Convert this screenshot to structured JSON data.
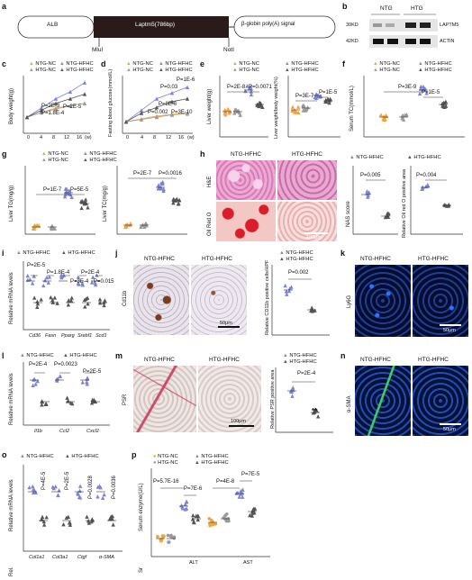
{
  "panels": {
    "a": "a",
    "b": "b",
    "c": "c",
    "d": "d",
    "e": "e",
    "f": "f",
    "g": "g",
    "h": "h",
    "i": "i",
    "j": "j",
    "k": "k",
    "l": "l",
    "m": "m",
    "n": "n",
    "o": "o",
    "p": "p"
  },
  "construct": {
    "alb": "ALB",
    "laptm5": "Laptm5(786bp)",
    "polyA": "β-globin poly(A) signal",
    "mlul": "MluI",
    "notl": "NotI"
  },
  "blot": {
    "ntg": "NTG",
    "htg": "HTG",
    "kd30": "30KD",
    "kd42": "42KD",
    "laptm5": "LAPTM5",
    "actin": "ACTIN"
  },
  "legend4": {
    "ntg_nc": "NTG-NC",
    "htg_nc": "HTG-NC",
    "ntg_hfhc": "NTG-HFHC",
    "htg_hfhc": "HTG-HFHC"
  },
  "legend2": {
    "ntg_hfhc": "NTG-HFHC",
    "htg_hfhc": "HTG-HFHC"
  },
  "colors": {
    "ntg_nc": "#f4a23a",
    "htg_nc": "#9a9a9a",
    "ntg_hfhc": "#7b83d6",
    "htg_hfhc": "#555555"
  },
  "c": {
    "ylabel": "Body weight(g)",
    "xticks": [
      "0",
      "4",
      "8",
      "12",
      "16"
    ],
    "xunit": "(w)",
    "p1": "P=2E-3",
    "p2": "P=1.8E-4",
    "p3": "P=2E-5",
    "chart_data": {
      "type": "line",
      "x": [
        0,
        4,
        8,
        12,
        16
      ],
      "series": [
        {
          "name": "NTG-NC",
          "values": [
            22,
            24,
            26,
            27,
            28
          ]
        },
        {
          "name": "HTG-NC",
          "values": [
            22,
            24,
            25.5,
            27,
            28
          ]
        },
        {
          "name": "NTG-HFHC",
          "values": [
            22,
            26,
            30,
            33,
            37
          ]
        },
        {
          "name": "HTG-HFHC",
          "values": [
            22,
            25,
            28,
            30,
            32
          ]
        }
      ]
    }
  },
  "d": {
    "ylabel": "Fasting blood glucose(mmol/L)",
    "xticks": [
      "0",
      "4",
      "8",
      "12",
      "16"
    ],
    "xunit": "(w)",
    "p1": "P=0.03",
    "p2": "P=1E-6",
    "p3": "P=0.002",
    "p4": "P=8E-6",
    "p5": "P=3E-10",
    "chart_data": {
      "type": "line",
      "x": [
        0,
        4,
        8,
        12,
        16
      ],
      "series": [
        {
          "name": "NTG-NC",
          "values": [
            5,
            5.5,
            6,
            6.3,
            6.5
          ]
        },
        {
          "name": "HTG-NC",
          "values": [
            5,
            5.4,
            5.8,
            6.2,
            6.4
          ]
        },
        {
          "name": "NTG-HFHC",
          "values": [
            5,
            7,
            9,
            10,
            11
          ]
        },
        {
          "name": "HTG-HFHC",
          "values": [
            5,
            6.5,
            7.5,
            8.5,
            9
          ]
        }
      ]
    }
  },
  "e": {
    "ylabel1": "Liver weight(g)",
    "ylabel2": "Liver weight/body weight(%)",
    "p1": "P=2E-8",
    "p2": "P=0.0071",
    "p3": "P=3E-7",
    "p4": "P=1E-5"
  },
  "f": {
    "ylabel": "Serum TC(mmol/L)",
    "p1": "P=3E-9",
    "p2": "P=1E-5"
  },
  "g": {
    "ylabel1": "Liver TG(mg/g)",
    "ylabel2": "Liver TC(mg/g)",
    "p1": "P=1E-7",
    "p2": "P=5E-5",
    "p3": "P=2E-7",
    "p4": "P=0.0016"
  },
  "h": {
    "col1": "NTG-HFHC",
    "col2": "HTG-HFHC",
    "row1": "H&E",
    "row2": "Oil Red O",
    "scale": "100μm",
    "ylabel1": "NAS score",
    "ylabel2": "Relative Oil red O positive area",
    "p1": "P=0.005",
    "p2": "P=0.004"
  },
  "i": {
    "ylabel": "Relative mRNA levels",
    "genes": [
      "Cd36",
      "Fasn",
      "Pparg",
      "Srebf1",
      "Scd1"
    ],
    "pvals": [
      "P=2E-5",
      "P=1.8E-4",
      "P=3E-4",
      "P=2E-4",
      "P=0.015"
    ]
  },
  "j": {
    "col1": "NTG-HFHC",
    "col2": "HTG-HFHC",
    "row": "Cd11b",
    "scale": "50μm",
    "ylabel": "Relative CD11b positive cells/HPF",
    "p": "P=0.002"
  },
  "k": {
    "col1": "NTG-HFHC",
    "col2": "HTG-HFHC",
    "row": "Ly6G",
    "scale": "50μm"
  },
  "l": {
    "ylabel": "Relative mRNA levels",
    "genes": [
      "Il1b",
      "Ccl2",
      "Cxcl2"
    ],
    "pvals": [
      "P=2E-4",
      "P=0.0023",
      "P=2E-5"
    ]
  },
  "m": {
    "col1": "NTG-HFHC",
    "col2": "HTG-HFHC",
    "row": "PSR",
    "scale": "100μm",
    "ylabel": "Relative PSR positive area",
    "p": "P=2E-4",
    "stars": "**"
  },
  "n": {
    "col1": "NTG-HFHC",
    "col2": "HTG-HFHC",
    "row": "α-SMA",
    "scale": "50μm"
  },
  "o": {
    "ylabel": "Relative mRNA levels",
    "ylabel_short": "Rel.",
    "genes": [
      "Col1a1",
      "Col3a1",
      "Ctgf",
      "α-SMA"
    ],
    "pvals": [
      "P=4E-5",
      "P=2E-5",
      "P=0.0028",
      "P=0.0036"
    ]
  },
  "p": {
    "ylabel": "Serum enzyme(U/L)",
    "groups": [
      "ALT",
      "AST"
    ],
    "sr": "Sr",
    "p1": "P=5.7E-16",
    "p2": "P=7E-6",
    "p3": "P=4E-8",
    "p4": "P=7E-5"
  }
}
